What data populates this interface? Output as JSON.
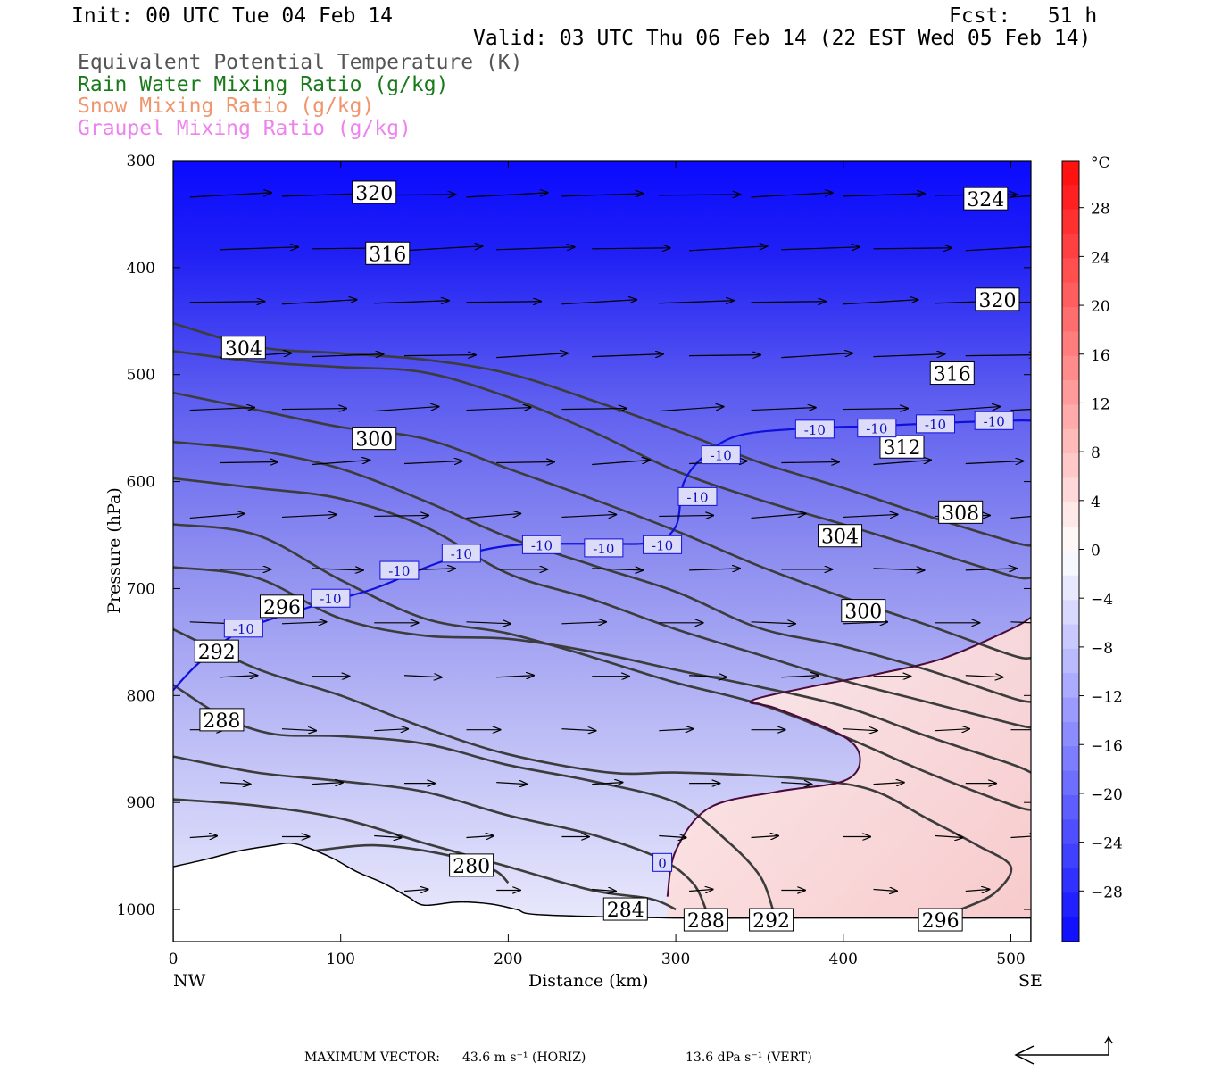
{
  "header": {
    "init": "Init: 00 UTC Tue 04 Feb 14",
    "fcst": "Fcst:   51 h",
    "valid": "Valid: 03 UTC Thu 06 Feb 14 (22 EST Wed 05 Feb 14)",
    "field1": "Equivalent Potential Temperature (K)",
    "field2": "Rain Water Mixing Ratio (g/kg)",
    "field3": "Snow Mixing Ratio (g/kg)",
    "field4": "Graupel Mixing Ratio (g/kg)"
  },
  "colors": {
    "field1": "#555555",
    "field2": "#1a7a1a",
    "field3": "#f0966e",
    "field4": "#ee82ee",
    "theta_line": "#3c3c3c",
    "isotherm": "#1010dd",
    "zero_line": "#4a0a3a"
  },
  "footer": {
    "max_vector_label": "MAXIMUM VECTOR:",
    "horiz": "43.6 m s⁻¹ (HORIZ)",
    "vert": "13.6 dPa s⁻¹ (VERT)"
  },
  "chart_data": {
    "type": "cross-section",
    "xlabel": "Distance (km)",
    "ylabel": "Pressure (hPa)",
    "x_ticks": [
      "0",
      "100",
      "200",
      "300",
      "400",
      "500"
    ],
    "y_ticks": [
      "300",
      "400",
      "500",
      "600",
      "700",
      "800",
      "900",
      "1000"
    ],
    "xlim": [
      0,
      512
    ],
    "ylim": [
      1030,
      300
    ],
    "y_scale": "linear-inverted",
    "endpoints": {
      "left": "NW",
      "right": "SE"
    },
    "colorbar": {
      "unit": "°C",
      "ticks": [
        "28",
        "24",
        "20",
        "16",
        "12",
        "8",
        "4",
        "0",
        "-4",
        "-8",
        "-12",
        "-16",
        "-20",
        "-24",
        "-28"
      ],
      "range": [
        -32,
        32
      ]
    },
    "theta_e_contours": [
      {
        "value": 280,
        "points": [
          [
            85,
            945
          ],
          [
            120,
            940
          ],
          [
            160,
            948
          ],
          [
            190,
            962
          ],
          [
            200,
            975
          ]
        ]
      },
      {
        "value": 284,
        "points": [
          [
            0,
            897
          ],
          [
            50,
            903
          ],
          [
            100,
            915
          ],
          [
            150,
            938
          ],
          [
            200,
            960
          ],
          [
            250,
            982
          ],
          [
            285,
            990
          ],
          [
            300,
            1000
          ]
        ]
      },
      {
        "value": 288,
        "points": [
          [
            0,
            857
          ],
          [
            50,
            872
          ],
          [
            100,
            880
          ],
          [
            150,
            890
          ],
          [
            200,
            912
          ],
          [
            250,
            930
          ],
          [
            290,
            952
          ],
          [
            310,
            975
          ],
          [
            318,
            1000
          ]
        ]
      },
      {
        "value": 292,
        "points": [
          [
            0,
            790
          ],
          [
            30,
            820
          ],
          [
            60,
            836
          ],
          [
            100,
            838
          ],
          [
            150,
            845
          ],
          [
            200,
            865
          ],
          [
            250,
            880
          ],
          [
            300,
            900
          ],
          [
            330,
            935
          ],
          [
            350,
            968
          ],
          [
            358,
            1000
          ]
        ]
      },
      {
        "value": 296,
        "points": [
          [
            0,
            738
          ],
          [
            50,
            775
          ],
          [
            100,
            800
          ],
          [
            150,
            830
          ],
          [
            200,
            855
          ],
          [
            260,
            872
          ],
          [
            300,
            872
          ],
          [
            350,
            875
          ],
          [
            390,
            880
          ],
          [
            420,
            890
          ],
          [
            450,
            915
          ],
          [
            480,
            940
          ],
          [
            500,
            960
          ],
          [
            490,
            985
          ],
          [
            470,
            1000
          ]
        ]
      },
      {
        "value": 300,
        "points": [
          [
            0,
            680
          ],
          [
            50,
            690
          ],
          [
            100,
            728
          ],
          [
            150,
            744
          ],
          [
            200,
            747
          ],
          [
            250,
            759
          ],
          [
            300,
            776
          ],
          [
            350,
            792
          ],
          [
            400,
            810
          ],
          [
            450,
            838
          ],
          [
            500,
            864
          ],
          [
            512,
            872
          ]
        ]
      },
      {
        "value": 304,
        "points": [
          [
            0,
            640
          ],
          [
            50,
            650
          ],
          [
            100,
            692
          ],
          [
            150,
            728
          ],
          [
            200,
            742
          ],
          [
            250,
            764
          ],
          [
            300,
            788
          ],
          [
            350,
            808
          ],
          [
            400,
            838
          ],
          [
            450,
            872
          ],
          [
            500,
            902
          ],
          [
            512,
            907
          ]
        ]
      },
      {
        "value": 308,
        "points": [
          [
            0,
            597
          ],
          [
            50,
            606
          ],
          [
            100,
            616
          ],
          [
            150,
            642
          ],
          [
            200,
            686
          ],
          [
            250,
            710
          ],
          [
            300,
            738
          ],
          [
            350,
            762
          ],
          [
            400,
            786
          ],
          [
            450,
            806
          ],
          [
            500,
            826
          ],
          [
            512,
            830
          ]
        ]
      },
      {
        "value": 312,
        "points": [
          [
            0,
            563
          ],
          [
            50,
            571
          ],
          [
            100,
            588
          ],
          [
            150,
            618
          ],
          [
            200,
            652
          ],
          [
            250,
            678
          ],
          [
            300,
            703
          ],
          [
            350,
            737
          ],
          [
            400,
            754
          ],
          [
            450,
            776
          ],
          [
            500,
            802
          ],
          [
            512,
            806
          ]
        ]
      },
      {
        "value": 316,
        "points": [
          [
            0,
            517
          ],
          [
            50,
            533
          ],
          [
            100,
            549
          ],
          [
            150,
            560
          ],
          [
            200,
            588
          ],
          [
            250,
            616
          ],
          [
            300,
            646
          ],
          [
            350,
            679
          ],
          [
            400,
            708
          ],
          [
            450,
            734
          ],
          [
            500,
            762
          ],
          [
            512,
            765
          ]
        ]
      },
      {
        "value": 320,
        "points": [
          [
            0,
            478
          ],
          [
            50,
            488
          ],
          [
            100,
            493
          ],
          [
            150,
            498
          ],
          [
            200,
            521
          ],
          [
            250,
            553
          ],
          [
            300,
            590
          ],
          [
            350,
            617
          ],
          [
            400,
            640
          ],
          [
            450,
            664
          ],
          [
            500,
            688
          ],
          [
            512,
            690
          ]
        ]
      },
      {
        "value": 324,
        "points": [
          [
            0,
            452
          ],
          [
            50,
            474
          ],
          [
            100,
            480
          ],
          [
            150,
            486
          ],
          [
            200,
            499
          ],
          [
            250,
            524
          ],
          [
            300,
            552
          ],
          [
            350,
            582
          ],
          [
            400,
            606
          ],
          [
            450,
            632
          ],
          [
            500,
            656
          ],
          [
            512,
            660
          ]
        ]
      }
    ],
    "isotherm_minus10": [
      [
        0,
        795
      ],
      [
        15,
        770
      ],
      [
        40,
        740
      ],
      [
        80,
        718
      ],
      [
        120,
        700
      ],
      [
        160,
        675
      ],
      [
        200,
        660
      ],
      [
        250,
        658
      ],
      [
        285,
        657
      ],
      [
        300,
        642
      ],
      [
        305,
        600
      ],
      [
        320,
        572
      ],
      [
        340,
        556
      ],
      [
        380,
        550
      ],
      [
        420,
        548
      ],
      [
        460,
        545
      ],
      [
        500,
        543
      ],
      [
        512,
        543
      ]
    ],
    "isotherm_zero": [
      [
        295,
        988
      ],
      [
        300,
        945
      ],
      [
        320,
        905
      ],
      [
        360,
        890
      ],
      [
        400,
        880
      ],
      [
        410,
        860
      ],
      [
        400,
        838
      ],
      [
        360,
        812
      ],
      [
        345,
        805
      ],
      [
        380,
        792
      ],
      [
        420,
        780
      ],
      [
        460,
        765
      ],
      [
        500,
        738
      ],
      [
        512,
        727
      ]
    ],
    "contour_labels": [
      {
        "text": "320",
        "x": 120,
        "y": 330
      },
      {
        "text": "316",
        "x": 128,
        "y": 387
      },
      {
        "text": "304",
        "x": 42,
        "y": 475
      },
      {
        "text": "300",
        "x": 120,
        "y": 560
      },
      {
        "text": "296",
        "x": 65,
        "y": 717
      },
      {
        "text": "292",
        "x": 26,
        "y": 759
      },
      {
        "text": "288",
        "x": 29,
        "y": 823
      },
      {
        "text": "280",
        "x": 178,
        "y": 959
      },
      {
        "text": "284",
        "x": 270,
        "y": 1000
      },
      {
        "text": "288",
        "x": 318,
        "y": 1010
      },
      {
        "text": "292",
        "x": 357,
        "y": 1010
      },
      {
        "text": "296",
        "x": 458,
        "y": 1010
      },
      {
        "text": "324",
        "x": 485,
        "y": 336
      },
      {
        "text": "320",
        "x": 492,
        "y": 430
      },
      {
        "text": "316",
        "x": 465,
        "y": 499
      },
      {
        "text": "312",
        "x": 435,
        "y": 568
      },
      {
        "text": "308",
        "x": 470,
        "y": 629
      },
      {
        "text": "304",
        "x": 398,
        "y": 651
      },
      {
        "text": "300",
        "x": 412,
        "y": 721
      }
    ],
    "isotherm_labels": [
      {
        "text": "-10",
        "x": 42,
        "y": 737
      },
      {
        "text": "-10",
        "x": 94,
        "y": 709
      },
      {
        "text": "-10",
        "x": 135,
        "y": 683
      },
      {
        "text": "-10",
        "x": 172,
        "y": 667
      },
      {
        "text": "-10",
        "x": 220,
        "y": 659
      },
      {
        "text": "-10",
        "x": 257,
        "y": 662
      },
      {
        "text": "-10",
        "x": 292,
        "y": 659
      },
      {
        "text": "-10",
        "x": 313,
        "y": 614
      },
      {
        "text": "-10",
        "x": 327,
        "y": 575
      },
      {
        "text": "-10",
        "x": 383,
        "y": 551
      },
      {
        "text": "-10",
        "x": 420,
        "y": 550
      },
      {
        "text": "-10",
        "x": 455,
        "y": 546
      },
      {
        "text": "-10",
        "x": 490,
        "y": 543
      },
      {
        "text": "0",
        "x": 292,
        "y": 956
      }
    ],
    "wind_rows": [
      {
        "p": 332,
        "u": 48
      },
      {
        "p": 382,
        "u": 46
      },
      {
        "p": 432,
        "u": 44
      },
      {
        "p": 482,
        "u": 42
      },
      {
        "p": 532,
        "u": 38
      },
      {
        "p": 582,
        "u": 34
      },
      {
        "p": 632,
        "u": 32
      },
      {
        "p": 682,
        "u": 30
      },
      {
        "p": 732,
        "u": 26
      },
      {
        "p": 782,
        "u": 22
      },
      {
        "p": 832,
        "u": 20
      },
      {
        "p": 882,
        "u": 18
      },
      {
        "p": 932,
        "u": 16
      },
      {
        "p": 982,
        "u": 14
      }
    ],
    "terrain": [
      [
        0,
        960
      ],
      [
        20,
        953
      ],
      [
        40,
        945
      ],
      [
        60,
        940
      ],
      [
        70,
        938
      ],
      [
        80,
        942
      ],
      [
        95,
        952
      ],
      [
        110,
        965
      ],
      [
        125,
        975
      ],
      [
        140,
        988
      ],
      [
        150,
        996
      ],
      [
        170,
        993
      ],
      [
        190,
        995
      ],
      [
        205,
        1000
      ],
      [
        220,
        1005
      ],
      [
        300,
        1008
      ],
      [
        350,
        1008
      ],
      [
        400,
        1008
      ],
      [
        512,
        1008
      ]
    ]
  }
}
